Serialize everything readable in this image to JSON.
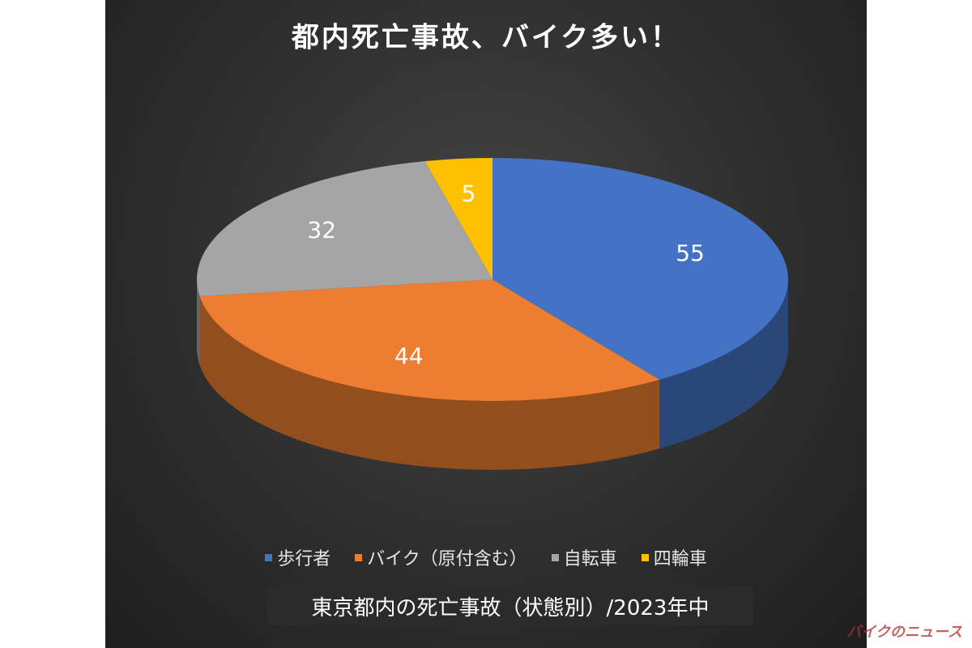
{
  "chart_data": {
    "type": "pie",
    "title": "都内死亡事故、バイク多い！",
    "categories": [
      "歩行者",
      "バイク（原付含む）",
      "自転車",
      "四輪車"
    ],
    "values": [
      55,
      44,
      32,
      5
    ],
    "colors": [
      "#4472c4",
      "#ed7d31",
      "#a5a5a5",
      "#ffc000"
    ],
    "legend": "bottom",
    "caption": "東京都内の死亡事故（状態別）/2023年中"
  },
  "watermark": "バイクのニュース"
}
